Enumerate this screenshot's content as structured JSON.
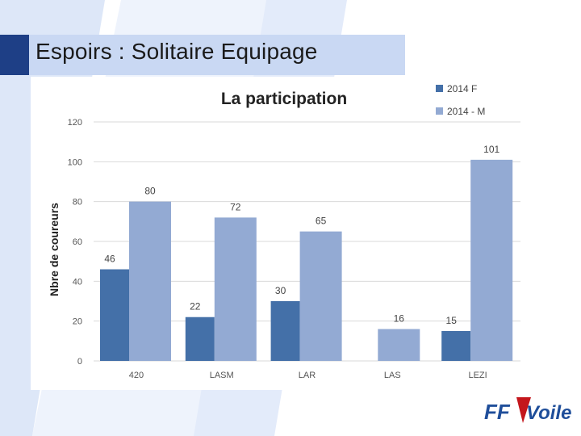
{
  "slide": {
    "title": "Espoirs : Solitaire Equipage"
  },
  "logo": {
    "text_ff": "FF",
    "text_voile": "Voile"
  },
  "colors": {
    "series_f": "#4470a8",
    "series_m": "#93aad3",
    "grid": "#d9d9d9",
    "bg_band_dark": "#1e3f86",
    "bg_band_light": "#c9d8f3"
  },
  "chart_data": {
    "type": "bar",
    "title": "La participation",
    "ylabel": "Nbre de coureurs",
    "xlabel": "",
    "ylim": [
      0,
      120
    ],
    "yticks": [
      0,
      20,
      40,
      60,
      80,
      100,
      120
    ],
    "categories": [
      "420",
      "LASM",
      "LAR",
      "LAS",
      "LEZI"
    ],
    "series": [
      {
        "name": "2014 F",
        "values": [
          46,
          22,
          30,
          null,
          15
        ]
      },
      {
        "name": "2014 - M",
        "values": [
          80,
          72,
          65,
          16,
          101
        ]
      }
    ],
    "grid": true,
    "legend": "top-right"
  }
}
